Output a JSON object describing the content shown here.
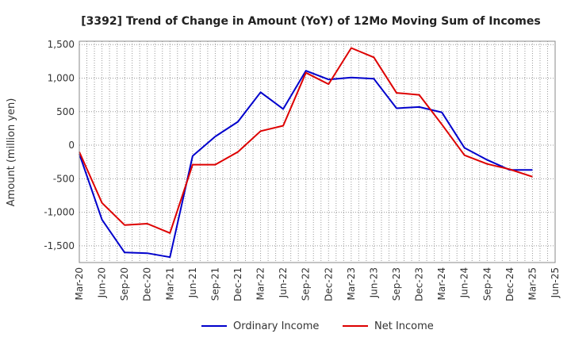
{
  "chart_data": {
    "type": "line",
    "title": "[3392]  Trend of Change in Amount (YoY) of 12Mo Moving Sum of Incomes",
    "ylabel": "Amount (million yen)",
    "xlabel": "",
    "ylim": [
      -1750,
      1550
    ],
    "yticks": [
      1500,
      1000,
      500,
      0,
      -500,
      -1000,
      -1500
    ],
    "ytick_labels": [
      "1,500",
      "1,000",
      "500",
      "0",
      "-500",
      "-1,000",
      "-1,500"
    ],
    "x_tick_labels": [
      "Mar-20",
      "Jun-20",
      "Sep-20",
      "Dec-20",
      "Mar-21",
      "Jun-21",
      "Sep-21",
      "Dec-21",
      "Mar-22",
      "Jun-22",
      "Sep-22",
      "Dec-22",
      "Mar-23",
      "Jun-23",
      "Sep-23",
      "Dec-23",
      "Mar-24",
      "Jun-24",
      "Sep-24",
      "Dec-24",
      "Mar-25",
      "Jun-25"
    ],
    "categories": [
      "Mar-20",
      "Jun-20",
      "Sep-20",
      "Dec-20",
      "Mar-21",
      "Jun-21",
      "Sep-21",
      "Dec-21",
      "Mar-22",
      "Jun-22",
      "Sep-22",
      "Dec-22",
      "Mar-23",
      "Jun-23",
      "Sep-23",
      "Dec-23",
      "Mar-24",
      "Jun-24",
      "Sep-24",
      "Dec-24",
      "Mar-25",
      "Jun-25"
    ],
    "grid": true,
    "legend_position": "bottom",
    "series": [
      {
        "name": "Ordinary Income",
        "color": "#0000cc",
        "values": [
          -130,
          -1110,
          -1600,
          -1610,
          -1670,
          -160,
          130,
          350,
          790,
          540,
          1110,
          980,
          1010,
          990,
          550,
          570,
          490,
          -40,
          -220,
          -370,
          -370,
          null
        ]
      },
      {
        "name": "Net Income",
        "color": "#dd0000",
        "values": [
          -100,
          -860,
          -1190,
          -1170,
          -1310,
          -290,
          -290,
          -100,
          210,
          290,
          1080,
          910,
          1450,
          1310,
          780,
          750,
          310,
          -150,
          -280,
          -360,
          -470,
          null
        ]
      }
    ]
  }
}
